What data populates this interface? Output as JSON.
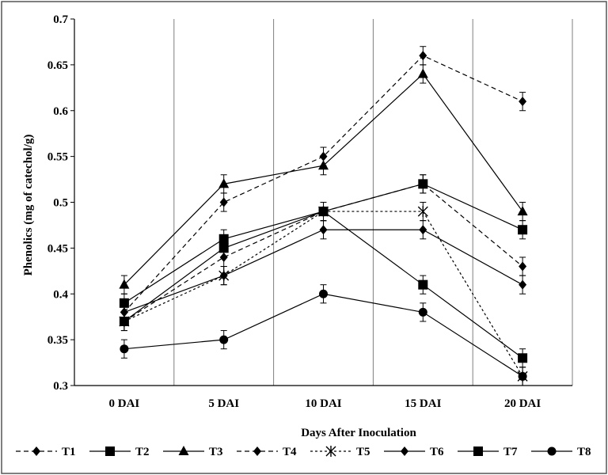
{
  "chart_data": {
    "type": "line",
    "xlabel": "Days After Inoculation",
    "ylabel": "Phenolics (mg of catechol/g)",
    "categories": [
      "0 DAI",
      "5 DAI",
      "10 DAI",
      "15 DAI",
      "20 DAI"
    ],
    "ylim": [
      0.3,
      0.7
    ],
    "yticks": [
      "0.3",
      "0.35",
      "0.4",
      "0.45",
      "0.5",
      "0.55",
      "0.6",
      "0.65",
      "0.7"
    ],
    "grid": "vertical",
    "legend_position": "bottom",
    "error_bars": true,
    "series": [
      {
        "name": "T1",
        "marker": "diamond",
        "line": "dashed",
        "values": [
          0.38,
          0.5,
          0.55,
          0.66,
          0.61
        ]
      },
      {
        "name": "T2",
        "marker": "square",
        "line": "solid",
        "values": [
          0.37,
          0.45,
          0.49,
          0.52,
          0.47
        ]
      },
      {
        "name": "T3",
        "marker": "triangle",
        "line": "solid",
        "values": [
          0.41,
          0.52,
          0.54,
          0.64,
          0.49
        ]
      },
      {
        "name": "T4",
        "marker": "diamond",
        "line": "dashed",
        "values": [
          0.37,
          0.44,
          0.49,
          0.52,
          0.43
        ]
      },
      {
        "name": "T5",
        "marker": "star",
        "line": "dotted",
        "values": [
          0.37,
          0.42,
          0.49,
          0.49,
          0.31
        ]
      },
      {
        "name": "T6",
        "marker": "diamond",
        "line": "solid",
        "values": [
          0.38,
          0.42,
          0.47,
          0.47,
          0.41
        ]
      },
      {
        "name": "T7",
        "marker": "square",
        "line": "solid",
        "values": [
          0.39,
          0.46,
          0.49,
          0.41,
          0.33
        ]
      },
      {
        "name": "T8",
        "marker": "circle",
        "line": "solid",
        "values": [
          0.34,
          0.35,
          0.4,
          0.38,
          0.31
        ]
      }
    ]
  }
}
